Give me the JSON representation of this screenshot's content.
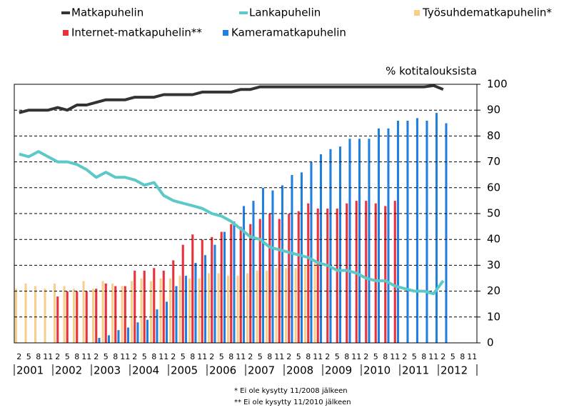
{
  "chart_data": {
    "type": "combo",
    "y_label": "% kotitalouksista",
    "categories": [
      "2",
      "5",
      "8",
      "11",
      "2",
      "5",
      "8",
      "11",
      "2",
      "5",
      "8",
      "11",
      "2",
      "5",
      "8",
      "11",
      "2",
      "5",
      "8",
      "11",
      "2",
      "5",
      "8",
      "11",
      "2",
      "5",
      "8",
      "11",
      "2",
      "5",
      "8",
      "11",
      "2",
      "5",
      "8",
      "11",
      "2",
      "5",
      "8",
      "11",
      "2",
      "5",
      "8",
      "11",
      "2",
      "5",
      "8",
      "11"
    ],
    "years": [
      "2001",
      "2002",
      "2003",
      "2004",
      "2005",
      "2006",
      "2007",
      "2008",
      "2009",
      "2010",
      "2011",
      "2012"
    ],
    "ylim": [
      0,
      100
    ],
    "yticks": [
      0,
      10,
      20,
      30,
      40,
      50,
      60,
      70,
      80,
      90,
      100
    ],
    "grid": true,
    "series": [
      {
        "name": "Matkapuhelin",
        "mark": "line",
        "color": "#333333",
        "values": [
          89,
          90,
          90,
          90,
          91,
          90,
          92,
          92,
          93,
          94,
          94,
          94,
          95,
          95,
          95,
          96,
          96,
          96,
          96,
          97,
          97,
          97,
          97,
          98,
          98,
          99,
          99,
          99,
          99,
          99,
          99,
          99,
          99,
          99,
          99,
          99,
          99,
          99,
          99,
          99,
          99,
          99,
          99,
          99.5,
          98,
          null,
          null,
          null
        ]
      },
      {
        "name": "Lankapuhelin",
        "mark": "line",
        "color": "#5cc8c8",
        "values": [
          73,
          72,
          74,
          72,
          70,
          70,
          69,
          67,
          64,
          66,
          64,
          64,
          63,
          61,
          62,
          57,
          55,
          54,
          53,
          52,
          50,
          49,
          47,
          44,
          41,
          40,
          37,
          36,
          35,
          34,
          33,
          31,
          30,
          28,
          28,
          27,
          25,
          24,
          24,
          22,
          21,
          20,
          20,
          19,
          24,
          null,
          null,
          null
        ]
      },
      {
        "name": "Työsuhdematkapuhelin*",
        "mark": "bar",
        "color": "#f8cf8a",
        "values": [
          21,
          23,
          22,
          21,
          23,
          22,
          21,
          24,
          21,
          24,
          23,
          22,
          24,
          25,
          24,
          25,
          25,
          26,
          25,
          25,
          27,
          27,
          26,
          26,
          27,
          28,
          28,
          29,
          29,
          29,
          30,
          31,
          null,
          null,
          null,
          null,
          null,
          null,
          null,
          null,
          null,
          null,
          null,
          null,
          null,
          null,
          null,
          null
        ]
      },
      {
        "name": "Internet-matkapuhelin**",
        "mark": "bar",
        "color": "#e8323c",
        "values": [
          null,
          null,
          null,
          null,
          18,
          20,
          20,
          20,
          21,
          23,
          22,
          22,
          28,
          28,
          29,
          28,
          32,
          38,
          42,
          40,
          41,
          43,
          46,
          45,
          46,
          48,
          50,
          48,
          50,
          51,
          54,
          52,
          52,
          52,
          54,
          55,
          55,
          54,
          53,
          55,
          null,
          null,
          null,
          null,
          null,
          null,
          null,
          null
        ]
      },
      {
        "name": "Kameramatkapuhelin",
        "mark": "bar",
        "color": "#2080e0",
        "values": [
          null,
          null,
          null,
          null,
          null,
          null,
          null,
          null,
          2,
          3,
          5,
          6,
          8,
          9,
          13,
          16,
          22,
          26,
          31,
          34,
          38,
          43,
          47,
          53,
          55,
          60,
          59,
          61,
          65,
          66,
          70,
          73,
          75,
          76,
          79,
          79,
          79,
          83,
          83,
          86,
          86,
          87,
          86,
          89,
          85,
          null,
          null,
          null
        ]
      }
    ],
    "notes": [
      "* Ei ole kysytty 11/2008 jälkeen",
      "** Ei ole kysytty 11/2010 jälkeen"
    ]
  }
}
